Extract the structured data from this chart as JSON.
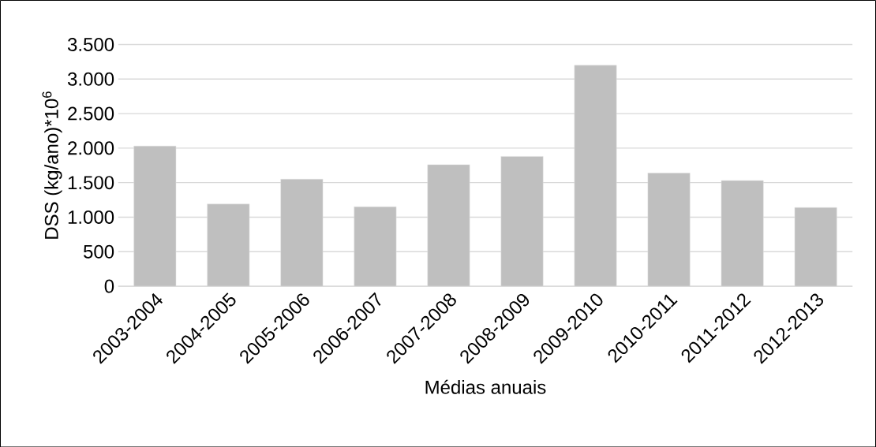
{
  "chart_data": {
    "type": "bar",
    "xlabel": "Médias anuais",
    "ylabel": "DSS (kg/ano)*10$^{6}$",
    "categories": [
      "2003-2004",
      "2004-2005",
      "2005-2006",
      "2006-2007",
      "2007-2008",
      "2008-2009",
      "2009-2010",
      "2010-2011",
      "2011-2012",
      "2012-2013"
    ],
    "values": [
      2030,
      1190,
      1550,
      1150,
      1760,
      1880,
      3200,
      1640,
      1530,
      1140
    ],
    "color": "#bfbfbf",
    "ylim": [
      0,
      3500
    ],
    "yticks": [
      {
        "value": 0,
        "label": "0"
      },
      {
        "value": 500,
        "label": "500"
      },
      {
        "value": 1000,
        "label": "1.000"
      },
      {
        "value": 1500,
        "label": "1.500"
      },
      {
        "value": 2000,
        "label": "2.000"
      },
      {
        "value": 2500,
        "label": "2.500"
      },
      {
        "value": 3000,
        "label": "3.000"
      },
      {
        "value": 3500,
        "label": "3.500"
      }
    ],
    "grid": "y"
  }
}
